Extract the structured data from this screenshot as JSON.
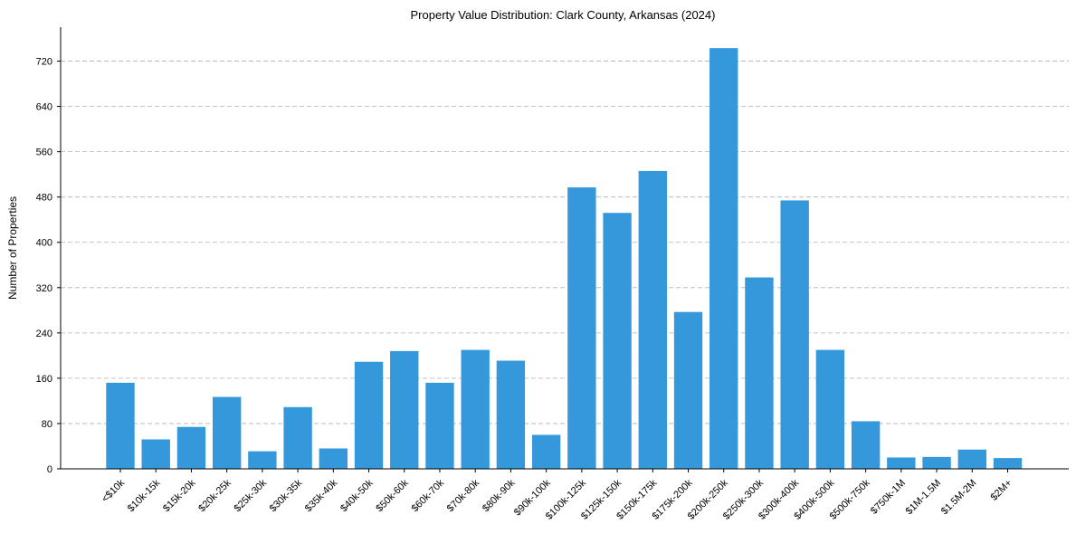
{
  "chart_data": {
    "type": "bar",
    "title": "Property Value Distribution: Clark County, Arkansas (2024)",
    "xlabel": "",
    "ylabel": "Number of Properties",
    "ylim": [
      0,
      780
    ],
    "yticks": [
      0,
      80,
      160,
      240,
      320,
      400,
      480,
      560,
      640,
      720
    ],
    "grid": "horizontal-dashed",
    "color": "#3498db",
    "categories": [
      "<$10k",
      "$10k-15k",
      "$15k-20k",
      "$20k-25k",
      "$25k-30k",
      "$30k-35k",
      "$35k-40k",
      "$40k-50k",
      "$50k-60k",
      "$60k-70k",
      "$70k-80k",
      "$80k-90k",
      "$90k-100k",
      "$100k-125k",
      "$125k-150k",
      "$150k-175k",
      "$175k-200k",
      "$200k-250k",
      "$250k-300k",
      "$300k-400k",
      "$400k-500k",
      "$500k-750k",
      "$750k-1M",
      "$1M-1.5M",
      "$1.5M-2M",
      "$2M+"
    ],
    "values": [
      152,
      52,
      74,
      127,
      31,
      109,
      36,
      189,
      208,
      152,
      210,
      191,
      60,
      497,
      452,
      526,
      277,
      743,
      338,
      474,
      210,
      84,
      20,
      21,
      34,
      19
    ]
  }
}
